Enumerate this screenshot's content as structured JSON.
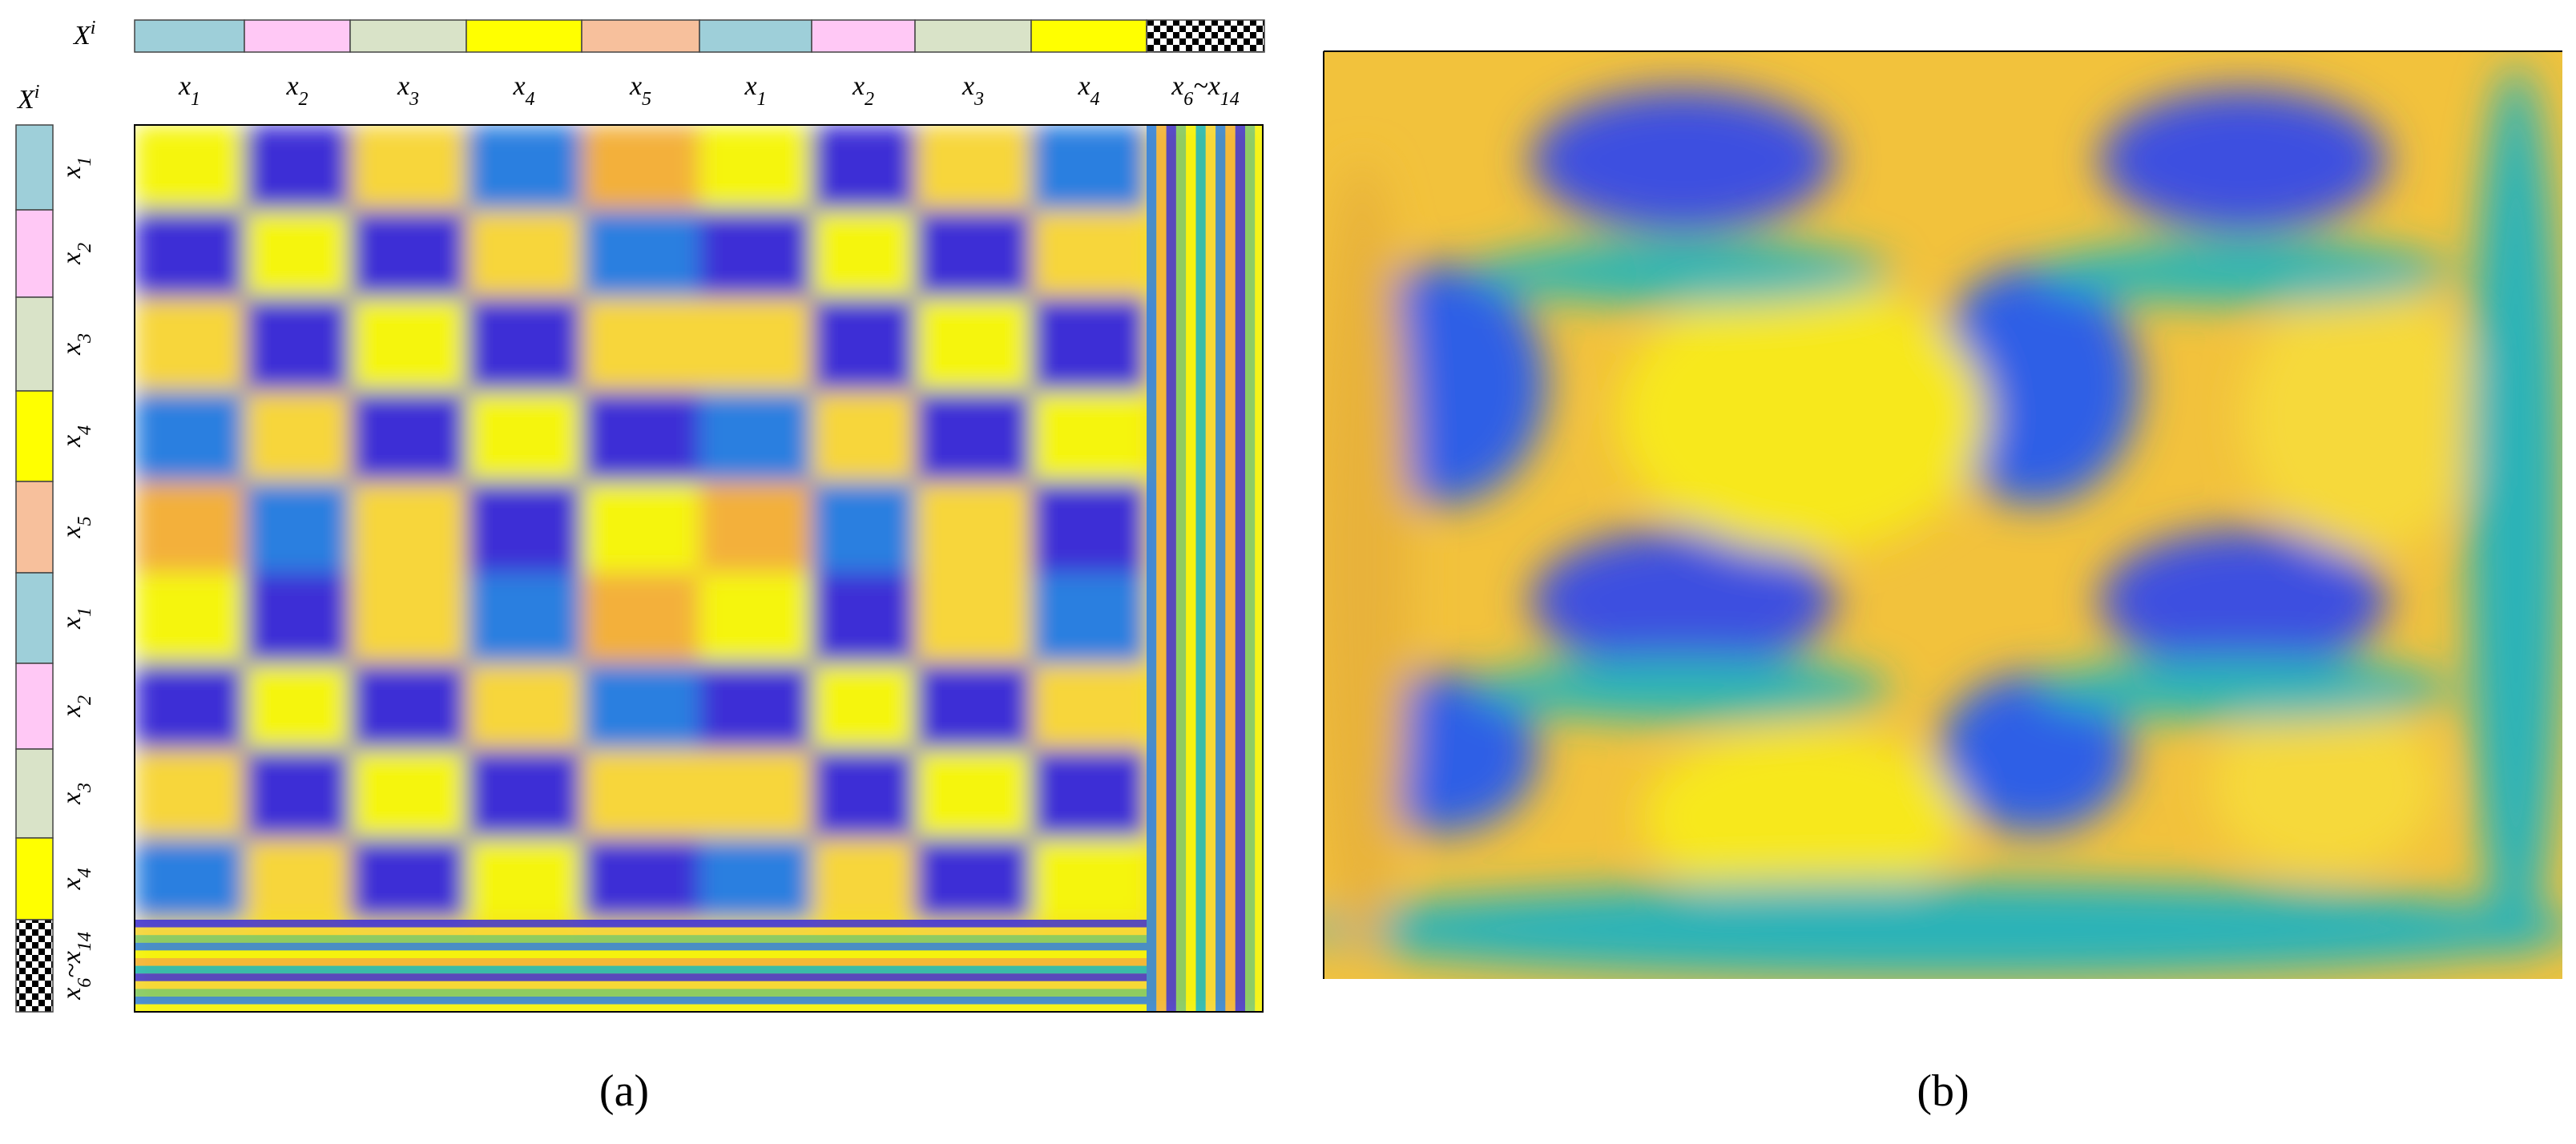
{
  "panel_a": {
    "header_symbol": [
      {
        "text": "X"
      },
      {
        "sup": "i"
      }
    ],
    "column_labels": [
      [
        {
          "text": "x"
        },
        {
          "sub": "1"
        }
      ],
      [
        {
          "text": "x"
        },
        {
          "sub": "2"
        }
      ],
      [
        {
          "text": "x"
        },
        {
          "sub": "3"
        }
      ],
      [
        {
          "text": "x"
        },
        {
          "sub": "4"
        }
      ],
      [
        {
          "text": "x"
        },
        {
          "sub": "5"
        }
      ],
      [
        {
          "text": "x"
        },
        {
          "sub": "1"
        }
      ],
      [
        {
          "text": "x"
        },
        {
          "sub": "2"
        }
      ],
      [
        {
          "text": "x"
        },
        {
          "sub": "3"
        }
      ],
      [
        {
          "text": "x"
        },
        {
          "sub": "4"
        }
      ],
      [
        {
          "text": "x"
        },
        {
          "sub": "6"
        },
        {
          "text": "~x"
        },
        {
          "sub": "14"
        }
      ]
    ],
    "row_symbol": [
      {
        "text": "X"
      },
      {
        "sup": "i"
      }
    ],
    "row_labels": [
      [
        {
          "text": "x"
        },
        {
          "sub": "1"
        }
      ],
      [
        {
          "text": "x"
        },
        {
          "sub": "2"
        }
      ],
      [
        {
          "text": "x"
        },
        {
          "sub": "3"
        }
      ],
      [
        {
          "text": "x"
        },
        {
          "sub": "4"
        }
      ],
      [
        {
          "text": "x"
        },
        {
          "sub": "5"
        }
      ],
      [
        {
          "text": "x"
        },
        {
          "sub": "1"
        }
      ],
      [
        {
          "text": "x"
        },
        {
          "sub": "2"
        }
      ],
      [
        {
          "text": "x"
        },
        {
          "sub": "3"
        }
      ],
      [
        {
          "text": "x"
        },
        {
          "sub": "4"
        }
      ],
      [
        {
          "text": "x"
        },
        {
          "sub": "6"
        },
        {
          "text": "~x"
        },
        {
          "sub": "14"
        }
      ]
    ],
    "caption": "(a)"
  },
  "panel_b": {
    "caption": "(b)"
  }
}
